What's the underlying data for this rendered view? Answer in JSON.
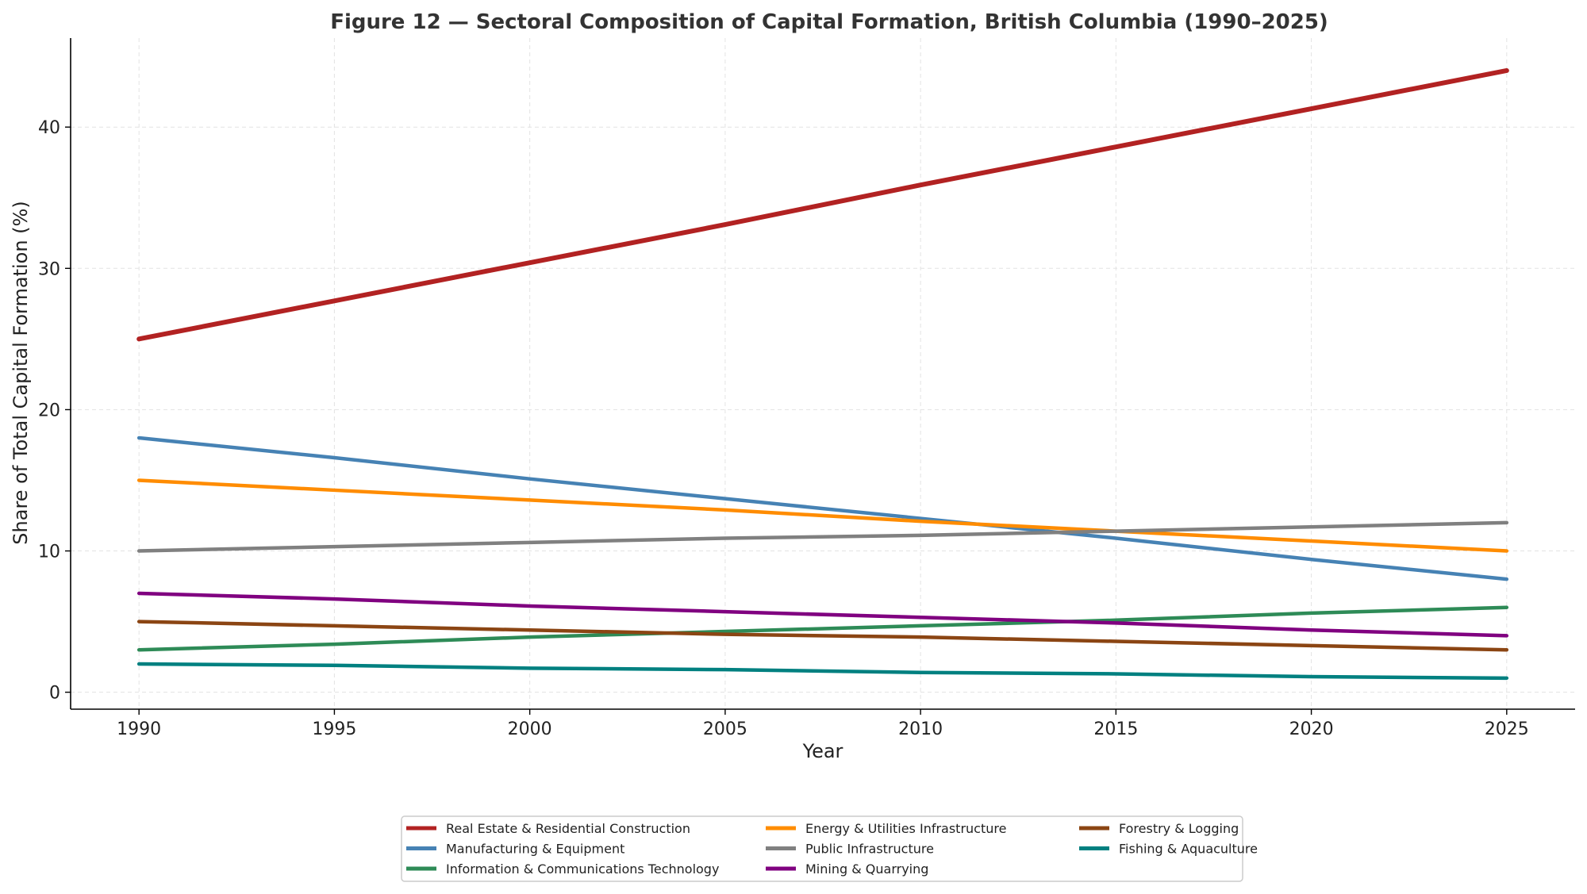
{
  "chart_data": {
    "type": "line",
    "title": "Figure 12 — Sectoral Composition of Capital Formation, British Columbia (1990–2025)",
    "xlabel": "Year",
    "ylabel": "Share of Total Capital Formation (%)",
    "xlim": [
      1988.25,
      2026.75
    ],
    "ylim": [
      -1.2,
      46.3
    ],
    "xticks": [
      1990,
      1995,
      2000,
      2005,
      2010,
      2015,
      2020,
      2025
    ],
    "yticks": [
      0,
      10,
      20,
      30,
      40
    ],
    "grid": true,
    "legend_placement": "bottom-center",
    "x": [
      1990,
      1995,
      2000,
      2005,
      2010,
      2015,
      2020,
      2025
    ],
    "series": [
      {
        "name": "Real Estate & Residential Construction",
        "color": "#b22222",
        "values": [
          25.0,
          27.7,
          30.4,
          33.1,
          35.9,
          38.6,
          41.3,
          44.0
        ]
      },
      {
        "name": "Manufacturing & Equipment",
        "color": "#4682b4",
        "values": [
          18.0,
          16.6,
          15.1,
          13.7,
          12.3,
          10.9,
          9.4,
          8.0
        ]
      },
      {
        "name": "Information & Communications Technology",
        "color": "#2e8b57",
        "values": [
          3.0,
          3.4,
          3.9,
          4.3,
          4.7,
          5.1,
          5.6,
          6.0
        ]
      },
      {
        "name": "Energy & Utilities Infrastructure",
        "color": "#ff8c00",
        "values": [
          15.0,
          14.3,
          13.6,
          12.9,
          12.1,
          11.4,
          10.7,
          10.0
        ]
      },
      {
        "name": "Public Infrastructure",
        "color": "#808080",
        "values": [
          10.0,
          10.3,
          10.6,
          10.9,
          11.1,
          11.4,
          11.7,
          12.0
        ]
      },
      {
        "name": "Mining & Quarrying",
        "color": "#800080",
        "values": [
          7.0,
          6.6,
          6.1,
          5.7,
          5.3,
          4.9,
          4.4,
          4.0
        ]
      },
      {
        "name": "Forestry & Logging",
        "color": "#8b4513",
        "values": [
          5.0,
          4.7,
          4.4,
          4.1,
          3.9,
          3.6,
          3.3,
          3.0
        ]
      },
      {
        "name": "Fishing & Aquaculture",
        "color": "#008080",
        "values": [
          2.0,
          1.9,
          1.7,
          1.6,
          1.4,
          1.3,
          1.1,
          1.0
        ]
      }
    ]
  }
}
